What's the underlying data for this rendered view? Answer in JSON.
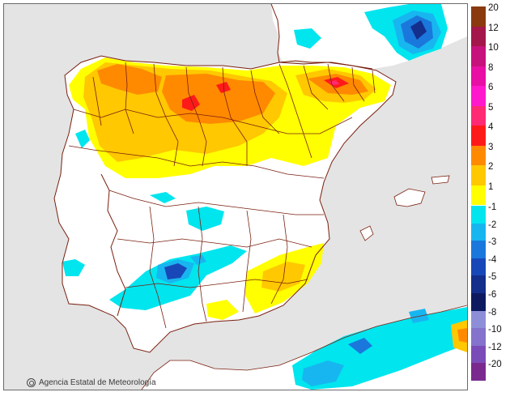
{
  "map": {
    "credit": "Agencia Estatal de Meteorología",
    "colors": {
      "sea": "#e4e4e4",
      "land": "#ffffff",
      "border": "#7a1f0f"
    }
  },
  "legend": {
    "positive": [
      {
        "label": "20",
        "color": "#8b3a10"
      },
      {
        "label": "12",
        "color": "#a4174a"
      },
      {
        "label": "10",
        "color": "#c8127b"
      },
      {
        "label": "8",
        "color": "#e80fa5"
      },
      {
        "label": "6",
        "color": "#ff18cc"
      },
      {
        "label": "5",
        "color": "#ff2a74"
      },
      {
        "label": "4",
        "color": "#ff1a1a"
      },
      {
        "label": "3",
        "color": "#ff8a00"
      },
      {
        "label": "2",
        "color": "#ffc800"
      },
      {
        "label": "1",
        "color": "#ffff00"
      }
    ],
    "negative": [
      {
        "label": "-1",
        "color": "#00e5ee"
      },
      {
        "label": "-2",
        "color": "#18b6f0"
      },
      {
        "label": "-3",
        "color": "#1a78dc"
      },
      {
        "label": "-4",
        "color": "#1848b8"
      },
      {
        "label": "-5",
        "color": "#142e8c"
      },
      {
        "label": "-6",
        "color": "#0e1a60"
      },
      {
        "label": "-8",
        "color": "#8e8ed8"
      },
      {
        "label": "-10",
        "color": "#8472cc"
      },
      {
        "label": "-12",
        "color": "#7a4cb8"
      },
      {
        "label": "-20",
        "color": "#7a2a8e"
      }
    ]
  }
}
